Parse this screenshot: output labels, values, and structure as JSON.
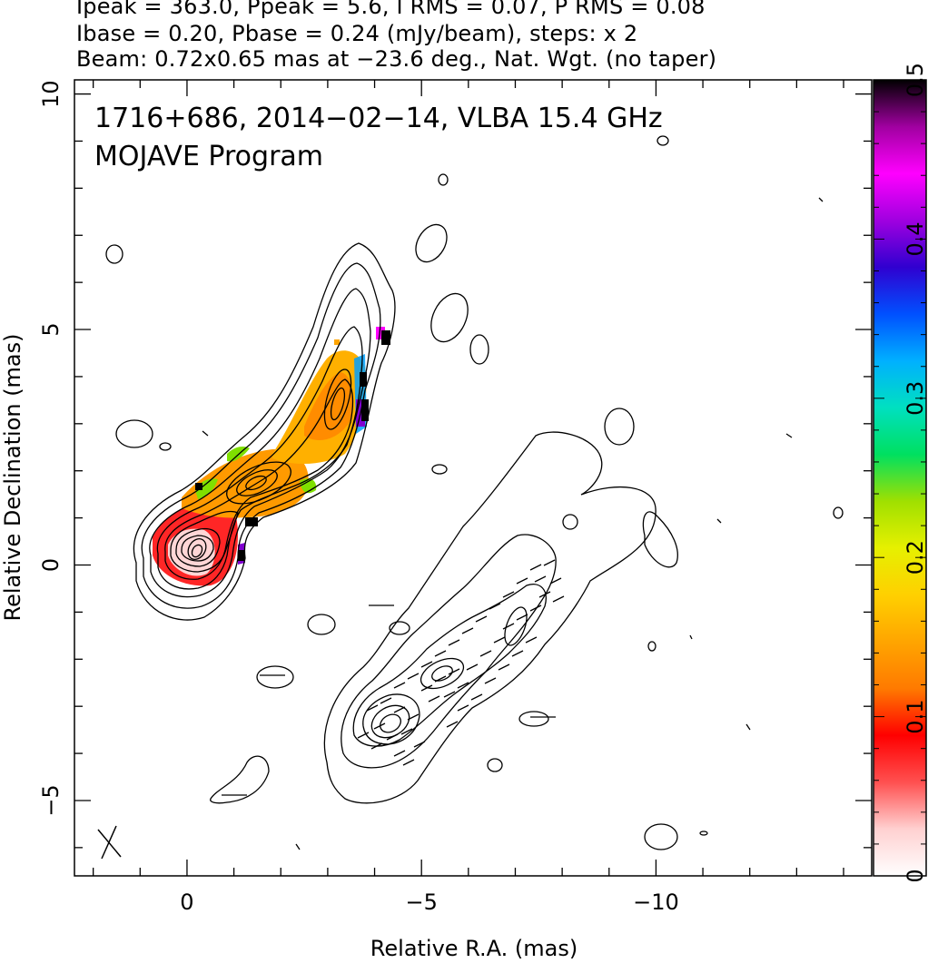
{
  "header": {
    "line1": "Ipeak = 363.0, Ppeak = 5.6, I RMS = 0.07, P RMS = 0.08",
    "line2": "Ibase = 0.20, Pbase = 0.24 (mJy/beam), steps: x 2",
    "line3": "Beam: 0.72x0.65 mas at −23.6 deg., Nat. Wgt. (no taper)"
  },
  "plot_title": {
    "line1": "1716+686, 2014−02−14, VLBA 15.4 GHz",
    "line2": "MOJAVE Program"
  },
  "chart_data": {
    "type": "heatmap",
    "xlabel": "Relative R.A. (mas)",
    "ylabel": "Relative Declination (mas)",
    "xlim": [
      2.4,
      -14.6
    ],
    "ylim": [
      -6.6,
      10.3
    ],
    "x_ticks": [
      {
        "value": 0,
        "label": "0"
      },
      {
        "value": -5,
        "label": "−5"
      },
      {
        "value": -10,
        "label": "−10"
      }
    ],
    "y_ticks": [
      {
        "value": -5,
        "label": "−5"
      },
      {
        "value": 0,
        "label": "0"
      },
      {
        "value": 5,
        "label": "5"
      },
      {
        "value": 10,
        "label": "10"
      }
    ],
    "colorbar": {
      "range": [
        0,
        0.5
      ],
      "ticks": [
        {
          "value": 0,
          "label": "0"
        },
        {
          "value": 0.1,
          "label": "0.1"
        },
        {
          "value": 0.2,
          "label": "0.2"
        },
        {
          "value": 0.3,
          "label": "0.3"
        },
        {
          "value": 0.4,
          "label": "0.4"
        },
        {
          "value": 0.5,
          "label": "0.5"
        }
      ],
      "colors": [
        "#ffffff",
        "#ffd0d0",
        "#ff5050",
        "#ff0000",
        "#ff7a00",
        "#ffa500",
        "#ffd000",
        "#e6f000",
        "#a0e000",
        "#00e060",
        "#00e0c0",
        "#00b0ff",
        "#0050ff",
        "#3000d0",
        "#a000e0",
        "#ff00ff",
        "#a000a0",
        "#000000"
      ]
    },
    "beam": {
      "major_mas": 0.72,
      "minor_mas": 0.65,
      "pa_deg": -23.6,
      "center": [
        1.7,
        -5.9
      ]
    },
    "core_center": [
      0.0,
      0.3
    ],
    "jet_components": [
      {
        "x": 0.0,
        "y": 0.3
      },
      {
        "x": -1.5,
        "y": 1.8
      },
      {
        "x": -3.0,
        "y": 3.5
      },
      {
        "x": -5.5,
        "y": -2.3
      },
      {
        "x": -4.5,
        "y": -3.5
      }
    ]
  }
}
